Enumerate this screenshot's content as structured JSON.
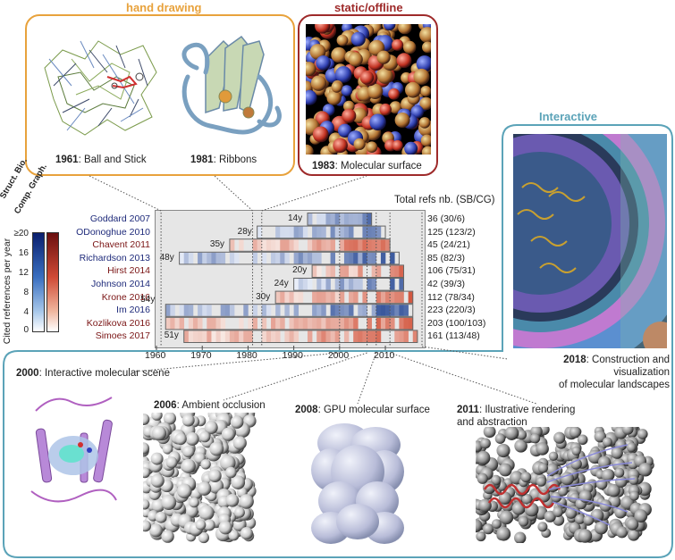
{
  "panels": {
    "hand_drawing": {
      "title": "hand drawing",
      "color": "#e8a23c"
    },
    "static": {
      "title": "static/offline",
      "color": "#9e2a2a"
    },
    "interactive": {
      "title": "Interactive",
      "color": "#5ba3b8"
    }
  },
  "captions": {
    "c1961": {
      "year": "1961",
      "text": ": Ball and Stick"
    },
    "c1981": {
      "year": "1981",
      "text": ": Ribbons"
    },
    "c1983": {
      "year": "1983",
      "text": ": Molecular surface"
    },
    "c2018": {
      "year": "2018",
      "text": ": Construction and visualization",
      "line2": "of molecular landscapes"
    },
    "c2000": {
      "year": "2000",
      "text": ": Interactive molecular scene"
    },
    "c2006": {
      "year": "2006",
      "text": ": Ambient occlusion"
    },
    "c2008": {
      "year": "2008",
      "text": ": GPU molecular surface"
    },
    "c2011": {
      "year": "2011",
      "text": ": Ilustrative rendering",
      "line2": "and abstraction"
    }
  },
  "legend": {
    "ylabel": "Cited references per year",
    "col1": "Struct. Bio.",
    "col2": "Comp. Graph.",
    "ticks": [
      "≥20",
      "16",
      "12",
      "8",
      "4",
      "0"
    ]
  },
  "chart_data": {
    "type": "heatmap",
    "title": "Total refs nb. (SB/CG)",
    "xlim": [
      1960,
      2018
    ],
    "xticks": [
      1960,
      1970,
      1980,
      1990,
      2000,
      2010
    ],
    "rows": [
      {
        "name": "Goddard 2007",
        "field": "SB",
        "span": "14y",
        "start": 1993,
        "end": 2007,
        "total": "36 (30/6)"
      },
      {
        "name": "ODonoghue 2010",
        "field": "SB",
        "span": "28y",
        "start": 1982,
        "end": 2010,
        "total": "125 (123/2)"
      },
      {
        "name": "Chavent 2011",
        "field": "CG",
        "span": "35y",
        "start": 1976,
        "end": 2011,
        "total": "45 (24/21)"
      },
      {
        "name": "Richardson 2013",
        "field": "SB",
        "span": "48y",
        "start": 1965,
        "end": 2013,
        "total": "85 (82/3)"
      },
      {
        "name": "Hirst 2014",
        "field": "CG",
        "span": "20y",
        "start": 1994,
        "end": 2014,
        "total": "106 (75/31)"
      },
      {
        "name": "Johnson 2014",
        "field": "SB",
        "span": "24y",
        "start": 1990,
        "end": 2014,
        "total": "42 (39/3)"
      },
      {
        "name": "Krone 2016",
        "field": "CG",
        "span": "30y",
        "start": 1986,
        "end": 2016,
        "total": "112 (78/34)"
      },
      {
        "name": "Im 2016",
        "field": "SB",
        "span": "54y",
        "start": 1962,
        "end": 2016,
        "total": "223 (220/3)"
      },
      {
        "name": "Kozlikova 2016",
        "field": "CG",
        "span": "",
        "start": 1962,
        "end": 2016,
        "total": "203 (100/103)"
      },
      {
        "name": "Simoes 2017",
        "field": "CG",
        "span": "51y",
        "start": 1966,
        "end": 2017,
        "total": "161 (113/48)"
      }
    ]
  }
}
